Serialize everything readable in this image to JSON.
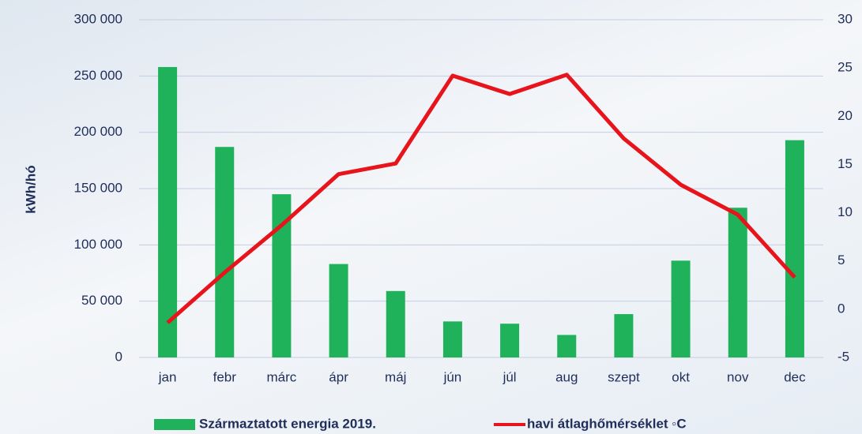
{
  "chart_data": {
    "type": "bar_line",
    "y_label": "kWh/hó",
    "categories": [
      "jan",
      "febr",
      "márc",
      "ápr",
      "máj",
      "jún",
      "júl",
      "aug",
      "szept",
      "okt",
      "nov",
      "dec"
    ],
    "series": [
      {
        "name": "Származtatott energia 2019.",
        "type": "bar",
        "color": "#1fb25a",
        "values": [
          258000,
          187000,
          145000,
          83000,
          59000,
          32000,
          30000,
          20000,
          38500,
          86000,
          133000,
          193000
        ]
      },
      {
        "name": "havi átlaghőmérséklet ◦C",
        "type": "line",
        "axis": "y2",
        "color": "#e8141c",
        "values": [
          -1.4,
          3.8,
          8.7,
          14.0,
          15.1,
          24.2,
          22.3,
          24.3,
          17.7,
          12.9,
          9.8,
          3.3
        ]
      }
    ],
    "ylim": [
      0,
      300000
    ],
    "yticks": [
      0,
      {
        "value": 50000,
        "label": "50 000"
      },
      {
        "value": 100000,
        "label": "100 000"
      },
      {
        "value": 150000,
        "label": "150 000"
      },
      {
        "value": 200000,
        "label": "200 000"
      },
      {
        "value": 250000,
        "label": "250 000"
      },
      {
        "value": 300000,
        "label": "300 000"
      }
    ],
    "y2lim": [
      -5,
      30
    ],
    "y2ticks": [
      -5,
      0,
      5,
      10,
      15,
      20,
      25,
      30
    ],
    "grid": true
  }
}
